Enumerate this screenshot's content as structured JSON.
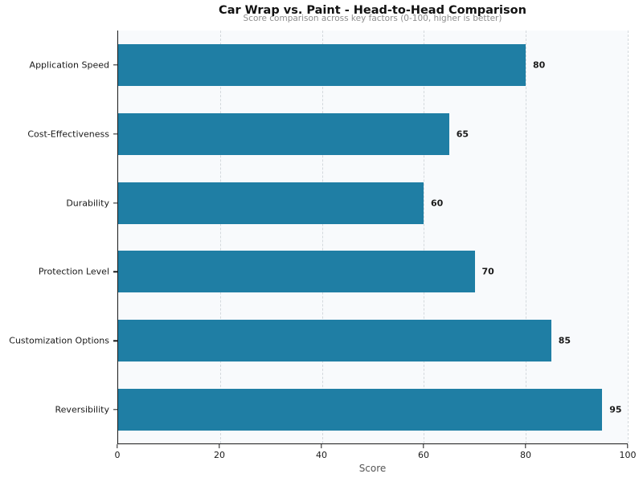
{
  "chart_data": {
    "type": "bar",
    "orientation": "horizontal",
    "title": "Car Wrap vs. Paint - Head-to-Head Comparison",
    "subtitle": "Score comparison across key factors (0-100, higher is better)",
    "categories": [
      "Application Speed",
      "Cost-Effectiveness",
      "Durability",
      "Protection Level",
      "Customization Options",
      "Reversibility"
    ],
    "values": [
      80,
      65,
      60,
      70,
      85,
      95
    ],
    "value_labels": [
      "80",
      "65",
      "60",
      "70",
      "85",
      "95"
    ],
    "xlabel": "Score",
    "xlim": [
      0,
      100
    ],
    "xticks": [
      0,
      20,
      40,
      60,
      80,
      100
    ],
    "grid": true,
    "legend": "none",
    "colors": {
      "bar": "#1F7EA4",
      "plot_background": "#f8fafc",
      "figure_background": "#ffffff",
      "gridline": "#d4d9dd",
      "axis": "#1a1a1a",
      "title_text": "#111111",
      "subtitle_text": "#8e8e8e",
      "tick_text": "#1a1a1a",
      "xlabel_text": "#555555"
    }
  }
}
